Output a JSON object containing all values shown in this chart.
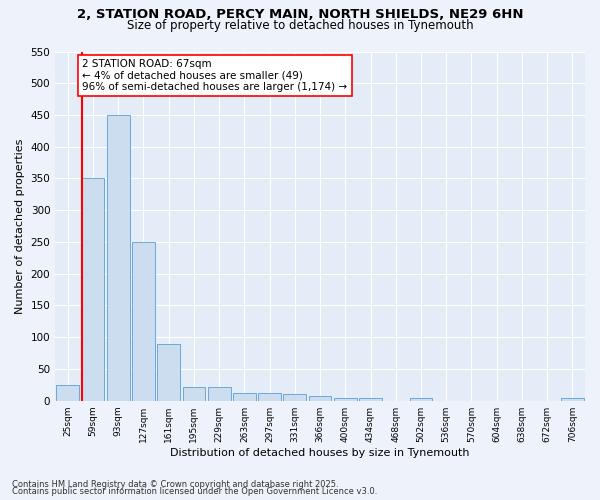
{
  "title_line1": "2, STATION ROAD, PERCY MAIN, NORTH SHIELDS, NE29 6HN",
  "title_line2": "Size of property relative to detached houses in Tynemouth",
  "xlabel": "Distribution of detached houses by size in Tynemouth",
  "ylabel": "Number of detached properties",
  "categories": [
    "25sqm",
    "59sqm",
    "93sqm",
    "127sqm",
    "161sqm",
    "195sqm",
    "229sqm",
    "263sqm",
    "297sqm",
    "331sqm",
    "366sqm",
    "400sqm",
    "434sqm",
    "468sqm",
    "502sqm",
    "536sqm",
    "570sqm",
    "604sqm",
    "638sqm",
    "672sqm",
    "706sqm"
  ],
  "values": [
    25,
    350,
    450,
    250,
    90,
    22,
    22,
    12,
    12,
    10,
    7,
    5,
    5,
    0,
    5,
    0,
    0,
    0,
    0,
    0,
    5
  ],
  "bar_color": "#ccddf0",
  "bar_edge_color": "#5a9fd4",
  "vline_x_index": 1,
  "vline_color": "red",
  "annotation_text": "2 STATION ROAD: 67sqm\n← 4% of detached houses are smaller (49)\n96% of semi-detached houses are larger (1,174) →",
  "annotation_box_color": "white",
  "annotation_box_edge_color": "red",
  "ylim": [
    0,
    550
  ],
  "yticks": [
    0,
    50,
    100,
    150,
    200,
    250,
    300,
    350,
    400,
    450,
    500,
    550
  ],
  "footer_line1": "Contains HM Land Registry data © Crown copyright and database right 2025.",
  "footer_line2": "Contains public sector information licensed under the Open Government Licence v3.0.",
  "background_color": "#eef2fa",
  "plot_background_color": "#e4ecf7"
}
